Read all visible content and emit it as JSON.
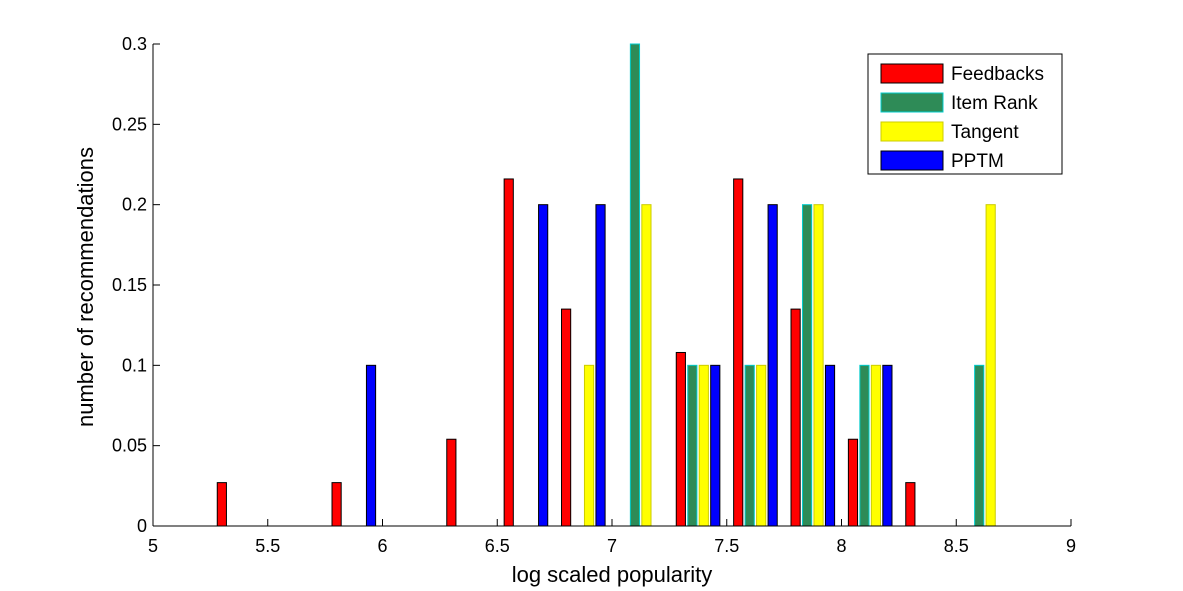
{
  "chart_data": {
    "type": "bar",
    "title": "",
    "xlabel": "log scaled popularity",
    "ylabel": "number of recommendations",
    "xlim": [
      5,
      9
    ],
    "ylim": [
      0,
      0.3
    ],
    "xticks": [
      5,
      5.5,
      6,
      6.5,
      7,
      7.5,
      8,
      8.5,
      9
    ],
    "xtick_labels": [
      "5",
      "5.5",
      "6",
      "6.5",
      "7",
      "7.5",
      "8",
      "8.5",
      "9"
    ],
    "yticks": [
      0,
      0.05,
      0.1,
      0.15,
      0.2,
      0.25,
      0.3
    ],
    "ytick_labels": [
      "0",
      "0.05",
      "0.1",
      "0.15",
      "0.2",
      "0.25",
      "0.3"
    ],
    "bin_centers": [
      5.125,
      5.375,
      5.625,
      5.875,
      6.125,
      6.375,
      6.625,
      6.875,
      7.125,
      7.375,
      7.625,
      7.875,
      8.125,
      8.375,
      8.625,
      8.875
    ],
    "grid": false,
    "legend_position": "top-right",
    "series": [
      {
        "name": "Feedbacks",
        "color": "#ff0000",
        "edge": "#000000",
        "values": [
          0,
          0.027,
          0,
          0.027,
          0,
          0.054,
          0.216,
          0.135,
          0,
          0.108,
          0.216,
          0.135,
          0.054,
          0.027,
          0,
          0
        ]
      },
      {
        "name": "Item Rank",
        "color": "#2e8b57",
        "edge": "#00cccc",
        "values": [
          0,
          0,
          0,
          0,
          0,
          0,
          0,
          0,
          0.3,
          0.1,
          0.1,
          0.2,
          0.1,
          0,
          0.1,
          0
        ]
      },
      {
        "name": "Tangent",
        "color": "#ffff00",
        "edge": "#cccc00",
        "values": [
          0,
          0,
          0,
          0,
          0,
          0,
          0,
          0.1,
          0.2,
          0.1,
          0.1,
          0.2,
          0.1,
          0,
          0.2,
          0
        ]
      },
      {
        "name": "PPTM",
        "color": "#0000ff",
        "edge": "#000000",
        "values": [
          0,
          0,
          0,
          0.1,
          0,
          0,
          0.2,
          0.2,
          0,
          0.1,
          0.2,
          0.1,
          0.1,
          0,
          0,
          0
        ]
      }
    ]
  }
}
